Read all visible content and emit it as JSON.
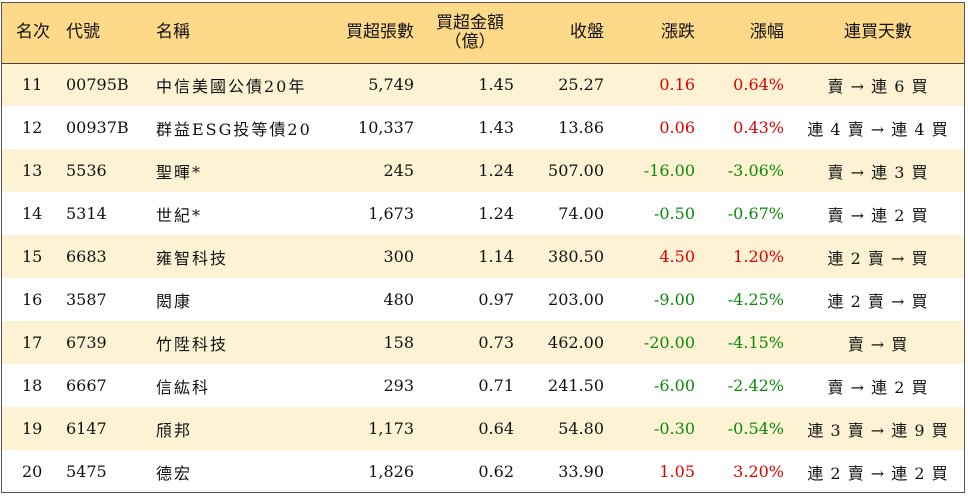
{
  "headers": {
    "rank": "名次",
    "code": "代號",
    "name": "名稱",
    "net_buy_lots": "買超張數",
    "net_buy_amount_l1": "買超金額",
    "net_buy_amount_l2": "（億）",
    "close": "收盤",
    "change": "漲跌",
    "change_pct": "漲幅",
    "consecutive_days": "連買天數"
  },
  "rows": [
    {
      "rank": "11",
      "code": "00795B",
      "name": "中信美國公債20年",
      "lots": "5,749",
      "amount": "1.45",
      "close": "25.27",
      "change": "0.16",
      "pct": "0.64%",
      "dir": "up",
      "days": "賣 → 連 6 買"
    },
    {
      "rank": "12",
      "code": "00937B",
      "name": "群益ESG投等債20",
      "lots": "10,337",
      "amount": "1.43",
      "close": "13.86",
      "change": "0.06",
      "pct": "0.43%",
      "dir": "up",
      "days": "連 4 賣 → 連 4 買"
    },
    {
      "rank": "13",
      "code": "5536",
      "name": "聖暉*",
      "lots": "245",
      "amount": "1.24",
      "close": "507.00",
      "change": "-16.00",
      "pct": "-3.06%",
      "dir": "down",
      "days": "賣 → 連 3 買"
    },
    {
      "rank": "14",
      "code": "5314",
      "name": "世紀*",
      "lots": "1,673",
      "amount": "1.24",
      "close": "74.00",
      "change": "-0.50",
      "pct": "-0.67%",
      "dir": "down",
      "days": "賣 → 連 2 買"
    },
    {
      "rank": "15",
      "code": "6683",
      "name": "雍智科技",
      "lots": "300",
      "amount": "1.14",
      "close": "380.50",
      "change": "4.50",
      "pct": "1.20%",
      "dir": "up",
      "days": "連 2 賣 → 買"
    },
    {
      "rank": "16",
      "code": "3587",
      "name": "閎康",
      "lots": "480",
      "amount": "0.97",
      "close": "203.00",
      "change": "-9.00",
      "pct": "-4.25%",
      "dir": "down",
      "days": "連 2 賣 → 買"
    },
    {
      "rank": "17",
      "code": "6739",
      "name": "竹陞科技",
      "lots": "158",
      "amount": "0.73",
      "close": "462.00",
      "change": "-20.00",
      "pct": "-4.15%",
      "dir": "down",
      "days": "賣 → 買"
    },
    {
      "rank": "18",
      "code": "6667",
      "name": "信紘科",
      "lots": "293",
      "amount": "0.71",
      "close": "241.50",
      "change": "-6.00",
      "pct": "-2.42%",
      "dir": "down",
      "days": "賣 → 連 2 買"
    },
    {
      "rank": "19",
      "code": "6147",
      "name": "頎邦",
      "lots": "1,173",
      "amount": "0.64",
      "close": "54.80",
      "change": "-0.30",
      "pct": "-0.54%",
      "dir": "down",
      "days": "連 3 賣 → 連 9 買"
    },
    {
      "rank": "20",
      "code": "5475",
      "name": "德宏",
      "lots": "1,826",
      "amount": "0.62",
      "close": "33.90",
      "change": "1.05",
      "pct": "3.20%",
      "dir": "up",
      "days": "連 2 賣 → 連 2 買"
    }
  ],
  "colors": {
    "up": "#e00000",
    "down": "#0a8a0a",
    "header_bg": "#fdd98a",
    "stripe_bg": "#fdf3d4"
  }
}
